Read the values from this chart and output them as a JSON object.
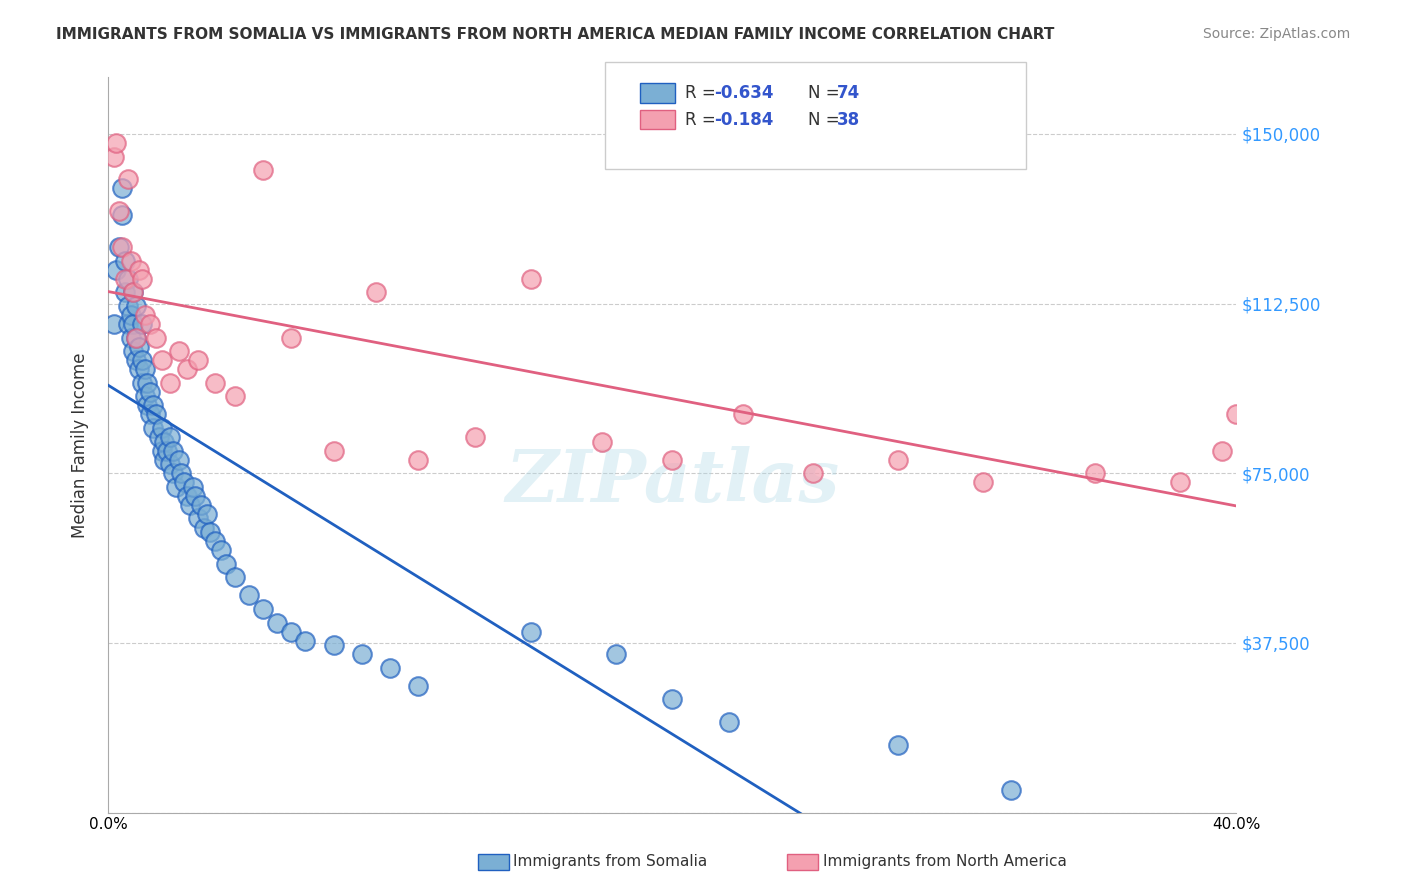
{
  "title": "IMMIGRANTS FROM SOMALIA VS IMMIGRANTS FROM NORTH AMERICA MEDIAN FAMILY INCOME CORRELATION CHART",
  "source": "Source: ZipAtlas.com",
  "xlabel_bottom": "",
  "ylabel": "Median Family Income",
  "xlim": [
    0,
    0.4
  ],
  "ylim": [
    0,
    162500
  ],
  "yticks": [
    0,
    37500,
    75000,
    112500,
    150000
  ],
  "ytick_labels": [
    "",
    "$37,500",
    "$75,000",
    "$112,500",
    "$150,000"
  ],
  "xticks": [
    0.0,
    0.05,
    0.1,
    0.15,
    0.2,
    0.25,
    0.3,
    0.35,
    0.4
  ],
  "xtick_labels": [
    "0.0%",
    "",
    "",
    "",
    "",
    "",
    "",
    "",
    "40.0%"
  ],
  "legend_label1": "R = -0.634   N = 74",
  "legend_label2": "R =  -0.184   N = 38",
  "legend_r1": "-0.634",
  "legend_n1": "74",
  "legend_r2": "-0.184",
  "legend_n2": "38",
  "color_somalia": "#7bafd4",
  "color_north_america": "#f4a0b0",
  "color_somalia_line": "#2060c0",
  "color_north_america_line": "#e06080",
  "watermark": "ZIPatlas",
  "footer_label1": "Immigrants from Somalia",
  "footer_label2": "Immigrants from North America",
  "somalia_x": [
    0.002,
    0.003,
    0.004,
    0.005,
    0.005,
    0.006,
    0.006,
    0.007,
    0.007,
    0.007,
    0.008,
    0.008,
    0.009,
    0.009,
    0.009,
    0.01,
    0.01,
    0.01,
    0.011,
    0.011,
    0.012,
    0.012,
    0.012,
    0.013,
    0.013,
    0.014,
    0.014,
    0.015,
    0.015,
    0.016,
    0.016,
    0.017,
    0.018,
    0.019,
    0.019,
    0.02,
    0.02,
    0.021,
    0.022,
    0.022,
    0.023,
    0.023,
    0.024,
    0.025,
    0.026,
    0.027,
    0.028,
    0.029,
    0.03,
    0.031,
    0.032,
    0.033,
    0.034,
    0.035,
    0.036,
    0.038,
    0.04,
    0.042,
    0.045,
    0.05,
    0.055,
    0.06,
    0.065,
    0.07,
    0.08,
    0.09,
    0.1,
    0.11,
    0.15,
    0.18,
    0.2,
    0.22,
    0.28,
    0.32
  ],
  "somalia_y": [
    108000,
    120000,
    125000,
    132000,
    138000,
    115000,
    122000,
    118000,
    112000,
    108000,
    105000,
    110000,
    102000,
    108000,
    115000,
    100000,
    105000,
    112000,
    98000,
    103000,
    95000,
    100000,
    108000,
    92000,
    98000,
    90000,
    95000,
    88000,
    93000,
    85000,
    90000,
    88000,
    83000,
    80000,
    85000,
    82000,
    78000,
    80000,
    77000,
    83000,
    75000,
    80000,
    72000,
    78000,
    75000,
    73000,
    70000,
    68000,
    72000,
    70000,
    65000,
    68000,
    63000,
    66000,
    62000,
    60000,
    58000,
    55000,
    52000,
    48000,
    45000,
    42000,
    40000,
    38000,
    37000,
    35000,
    32000,
    28000,
    40000,
    35000,
    25000,
    20000,
    15000,
    5000
  ],
  "north_america_x": [
    0.002,
    0.003,
    0.004,
    0.005,
    0.006,
    0.007,
    0.008,
    0.009,
    0.01,
    0.011,
    0.012,
    0.013,
    0.015,
    0.017,
    0.019,
    0.022,
    0.025,
    0.028,
    0.032,
    0.038,
    0.045,
    0.055,
    0.065,
    0.08,
    0.095,
    0.11,
    0.13,
    0.15,
    0.175,
    0.2,
    0.225,
    0.25,
    0.28,
    0.31,
    0.35,
    0.38,
    0.395,
    0.4
  ],
  "north_america_y": [
    145000,
    148000,
    133000,
    125000,
    118000,
    140000,
    122000,
    115000,
    105000,
    120000,
    118000,
    110000,
    108000,
    105000,
    100000,
    95000,
    102000,
    98000,
    100000,
    95000,
    92000,
    142000,
    105000,
    80000,
    115000,
    78000,
    83000,
    118000,
    82000,
    78000,
    88000,
    75000,
    78000,
    73000,
    75000,
    73000,
    80000,
    88000
  ]
}
